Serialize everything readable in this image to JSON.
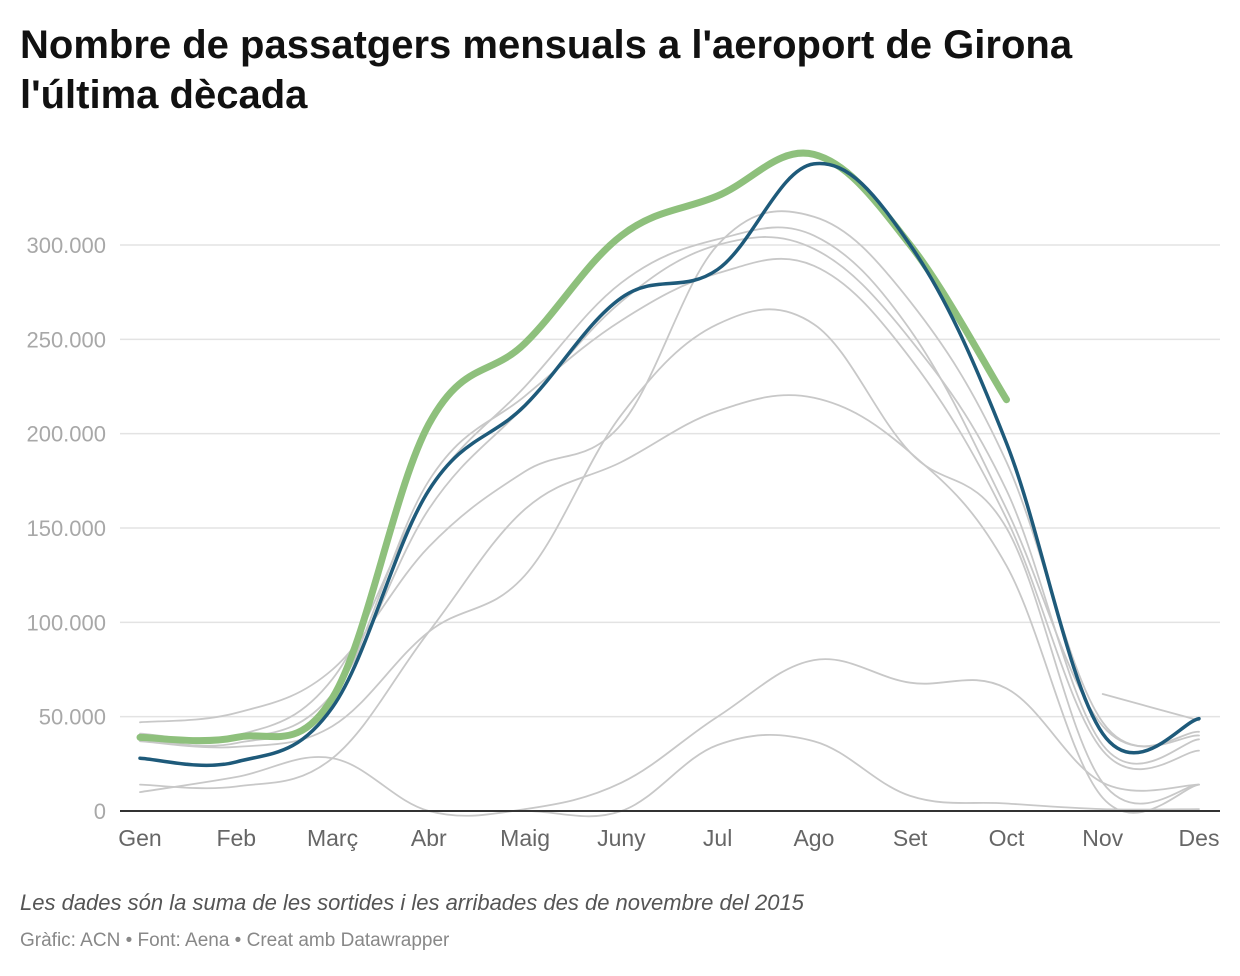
{
  "chart_data": {
    "type": "line",
    "title": "Nombre de passatgers mensuals a l'aeroport de Girona l'última dècada",
    "categories": [
      "Gen",
      "Feb",
      "Març",
      "Abr",
      "Maig",
      "Juny",
      "Jul",
      "Ago",
      "Set",
      "Oct",
      "Nov",
      "Des"
    ],
    "yticks": [
      "0",
      "50.000",
      "100.000",
      "150.000",
      "200.000",
      "250.000",
      "300.000"
    ],
    "ylim": [
      0,
      350000
    ],
    "grid": true,
    "legend": "none",
    "colors": {
      "background_series": "#c8c8c8",
      "highlight_previous": "#1e5a7a",
      "highlight_latest": "#8ec07c",
      "grid": "#e3e3e3",
      "axis": "#333333"
    },
    "series": [
      {
        "role": "background",
        "values": [
          47000,
          52000,
          75000,
          140000,
          180000,
          205000,
          300000,
          315000,
          270000,
          185000,
          47000,
          42000
        ]
      },
      {
        "role": "background",
        "values": [
          41000,
          40000,
          70000,
          170000,
          225000,
          280000,
          303000,
          305000,
          255000,
          160000,
          45000,
          40000
        ]
      },
      {
        "role": "background",
        "values": [
          40000,
          38000,
          62000,
          160000,
          215000,
          270000,
          300000,
          298000,
          250000,
          170000,
          35000,
          38000
        ]
      },
      {
        "role": "background",
        "values": [
          38000,
          36000,
          60000,
          175000,
          220000,
          260000,
          285000,
          289000,
          240000,
          155000,
          32000,
          32000
        ]
      },
      {
        "role": "background",
        "values": [
          37000,
          34000,
          45000,
          95000,
          125000,
          210000,
          258000,
          258000,
          190000,
          150000,
          15000,
          14000
        ]
      },
      {
        "role": "background",
        "values": [
          14000,
          13000,
          28000,
          95000,
          160000,
          185000,
          212000,
          219000,
          190000,
          130000,
          7000,
          14000
        ]
      },
      {
        "role": "background",
        "values": [
          10000,
          18000,
          28000,
          0,
          1000,
          15000,
          50000,
          80000,
          68000,
          65000,
          15000,
          14000
        ]
      },
      {
        "role": "background",
        "values": [
          0,
          0,
          0,
          0,
          0,
          0,
          35000,
          37000,
          8000,
          4000,
          1000,
          1000
        ]
      },
      {
        "role": "background",
        "values": [
          null,
          null,
          null,
          null,
          null,
          null,
          null,
          null,
          null,
          null,
          62000,
          48000
        ]
      },
      {
        "role": "previous",
        "values": [
          28000,
          26000,
          55000,
          170000,
          215000,
          272000,
          287000,
          343000,
          300000,
          195000,
          41000,
          49000
        ]
      },
      {
        "role": "latest",
        "values": [
          39000,
          39000,
          60000,
          205000,
          248000,
          305000,
          326000,
          348000,
          300000,
          218000,
          null,
          null
        ]
      }
    ]
  },
  "footer": {
    "note": "Les dades són la suma de les sortides i les arribades des de novembre del 2015",
    "credit": "Gràfic: ACN • Font: Aena • Creat amb Datawrapper"
  }
}
